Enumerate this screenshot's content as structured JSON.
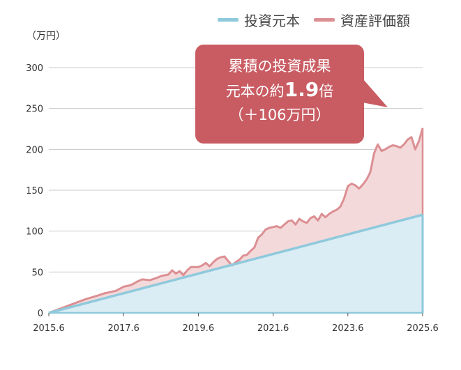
{
  "colors": {
    "principal": "#8fc9dc",
    "principal_fill": "#daedf4",
    "asset": "#dc8f93",
    "asset_fill": "#f3d9da",
    "callout": "#c95c63",
    "grid": "#c8c8c8"
  },
  "legend": {
    "principal": "投資元本",
    "asset": "資産評価額"
  },
  "callout": {
    "line1": "累積の投資成果",
    "line2_prefix": "元本の約",
    "line2_big": "1.9",
    "line2_suffix": "倍",
    "line3": "（＋106万円）"
  },
  "chart_data": {
    "type": "area",
    "unit_label": "（万円）",
    "x_ticks": [
      "2015.6",
      "2017.6",
      "2019.6",
      "2021.6",
      "2023.6",
      "2025.6"
    ],
    "y_ticks": [
      0,
      50,
      100,
      150,
      200,
      250,
      300
    ],
    "xlim": [
      2015.5,
      2025.5
    ],
    "ylim": [
      0,
      300
    ],
    "grid": true,
    "legend_position": "top-right",
    "series": [
      {
        "name": "投資元本",
        "x": [
          2015.5,
          2025.5
        ],
        "values": [
          0,
          120
        ]
      },
      {
        "name": "資産評価額",
        "x": [
          2015.5,
          2016.5,
          2016.8,
          2017.0,
          2017.3,
          2017.5,
          2017.7,
          2017.9,
          2018.0,
          2018.2,
          2018.4,
          2018.5,
          2018.7,
          2018.8,
          2018.9,
          2019.0,
          2019.1,
          2019.2,
          2019.3,
          2019.5,
          2019.6,
          2019.7,
          2019.8,
          2019.9,
          2020.0,
          2020.1,
          2020.2,
          2020.25,
          2020.4,
          2020.5,
          2020.6,
          2020.7,
          2020.8,
          2020.9,
          2021.0,
          2021.1,
          2021.2,
          2021.3,
          2021.4,
          2021.5,
          2021.6,
          2021.7,
          2021.8,
          2021.9,
          2022.0,
          2022.1,
          2022.2,
          2022.3,
          2022.4,
          2022.5,
          2022.6,
          2022.7,
          2022.8,
          2022.9,
          2023.0,
          2023.1,
          2023.2,
          2023.3,
          2023.4,
          2023.5,
          2023.6,
          2023.7,
          2023.8,
          2023.9,
          2024.0,
          2024.1,
          2024.2,
          2024.3,
          2024.4,
          2024.5,
          2024.6,
          2024.7,
          2024.8,
          2024.9,
          2025.0,
          2025.1,
          2025.2,
          2025.3,
          2025.4,
          2025.5
        ],
        "values": [
          0,
          17,
          21,
          24,
          27,
          32,
          34,
          39,
          41,
          40,
          43,
          45,
          47,
          52,
          48,
          51,
          46,
          52,
          56,
          56,
          58,
          61,
          57,
          62,
          66,
          68,
          69,
          66,
          58,
          62,
          65,
          70,
          71,
          76,
          80,
          92,
          96,
          102,
          104,
          105,
          106,
          104,
          108,
          112,
          113,
          108,
          115,
          112,
          110,
          116,
          118,
          113,
          121,
          117,
          121,
          124,
          126,
          130,
          140,
          155,
          158,
          156,
          152,
          157,
          163,
          172,
          195,
          206,
          198,
          200,
          203,
          205,
          204,
          202,
          206,
          212,
          215,
          200,
          210,
          226
        ]
      }
    ]
  }
}
